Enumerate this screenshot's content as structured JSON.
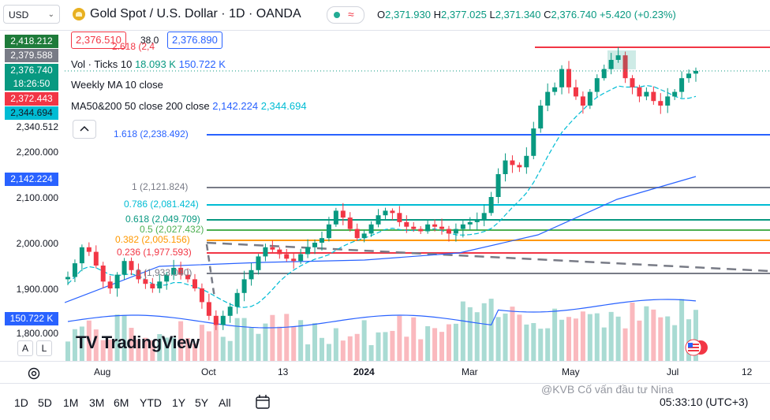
{
  "toolbar": {
    "symbol_select": "USD",
    "title": "Gold Spot / U.S. Dollar · 1D · OANDA",
    "status_glyph": "≈",
    "ohlc": {
      "o_label": "O",
      "o": "2,371.930",
      "h_label": "H",
      "h": "2,377.025",
      "l_label": "L",
      "l": "2,371.340",
      "c_label": "C",
      "c": "2,376.740",
      "chg": "+5.420 (+0.23%)"
    }
  },
  "legend": {
    "bid": "2,376.510",
    "spread": "38.0",
    "ask": "2,376.890",
    "vol_label": "Vol · Ticks 10",
    "vol_a": "18.093 K",
    "vol_b": "150.722 K",
    "weekly_ma": "Weekly MA 10 close",
    "ma_label": "MA50&200 50 close 200 close",
    "ma50": "2,142.224",
    "ma200": "2,344.694",
    "collapse_icon": "chevron-up-icon"
  },
  "price_axis": {
    "badges": [
      {
        "text": "2,418.212",
        "color": "#1e7b3a"
      },
      {
        "text": "2,379.588",
        "color": "#787b86"
      },
      {
        "text": "2,376.740",
        "color": "#089981"
      },
      {
        "text": "18:26:50",
        "color": "#089981"
      },
      {
        "text": "2,372.443",
        "color": "#f23645"
      },
      {
        "text": "2,344.694",
        "color": "#00bcd4",
        "dark": true
      },
      {
        "text": "2,142.224",
        "color": "#2962ff"
      },
      {
        "text": "150.722 K",
        "color": "#2962ff"
      }
    ],
    "ticks": [
      "2,340.512",
      "2,200.000",
      "2,100.000",
      "2,000.000",
      "1,900.000",
      "1,800.000"
    ]
  },
  "fib_levels": [
    {
      "label": "1.618 (2,238.492)",
      "color": "#2962ff"
    },
    {
      "label": "1 (2,121.824)",
      "color": "#787b86"
    },
    {
      "label": "0.786 (2,081.424)",
      "color": "#00bcd4"
    },
    {
      "label": "0.618 (2,049.709)",
      "color": "#089981"
    },
    {
      "label": "0.5 (2,027.432)",
      "color": "#4caf50"
    },
    {
      "label": "0.382 (2,005.156)",
      "color": "#ff9800"
    },
    {
      "label": "0.236 (1,977.593)",
      "color": "#f23645"
    },
    {
      "label": "0 (1,933.040)",
      "color": "#787b86"
    },
    {
      "label": "2.618 (2,4",
      "color": "#f23645"
    }
  ],
  "time_axis": [
    "Aug",
    "Oct",
    "13",
    "2024",
    "Mar",
    "May",
    "Jul",
    "12"
  ],
  "bottom_bar": {
    "timeframes": [
      "1D",
      "5D",
      "1M",
      "3M",
      "6M",
      "YTD",
      "1Y",
      "5Y",
      "All"
    ],
    "clock": "05:33:10 (UTC+3)",
    "watermark": "@KVB Cố vấn đầu tư Nina",
    "logo": "TradingView",
    "logo_mark": "TV"
  },
  "axis_buttons": {
    "auto": "A",
    "log": "L"
  },
  "colors": {
    "up": "#089981",
    "down": "#f23645",
    "ma_line": "#00bcd4",
    "ma_long": "#2962ff"
  },
  "chart_data": {
    "type": "candlestick",
    "symbol": "Gold Spot / U.S. Dollar",
    "interval": "1D",
    "y_range": [
      1780,
      2440
    ],
    "close_path": [
      1925,
      1955,
      1990,
      1980,
      1950,
      1915,
      1900,
      1930,
      1960,
      1940,
      1920,
      1910,
      1900,
      1915,
      1930,
      1945,
      1930,
      1920,
      1900,
      1870,
      1840,
      1820,
      1840,
      1860,
      1890,
      1920,
      1940,
      1970,
      1990,
      1985,
      1975,
      1965,
      1960,
      1975,
      1990,
      2000,
      2010,
      2040,
      2070,
      2055,
      2030,
      2010,
      2020,
      2040,
      2060,
      2070,
      2065,
      2045,
      2035,
      2030,
      2025,
      2040,
      2035,
      2030,
      2020,
      2030,
      2040,
      2045,
      2050,
      2065,
      2100,
      2150,
      2180,
      2170,
      2165,
      2190,
      2250,
      2300,
      2330,
      2340,
      2380,
      2340,
      2320,
      2300,
      2330,
      2360,
      2380,
      2400,
      2410,
      2360,
      2340,
      2320,
      2330,
      2310,
      2300,
      2320,
      2330,
      2360,
      2370,
      2376
    ]
  }
}
